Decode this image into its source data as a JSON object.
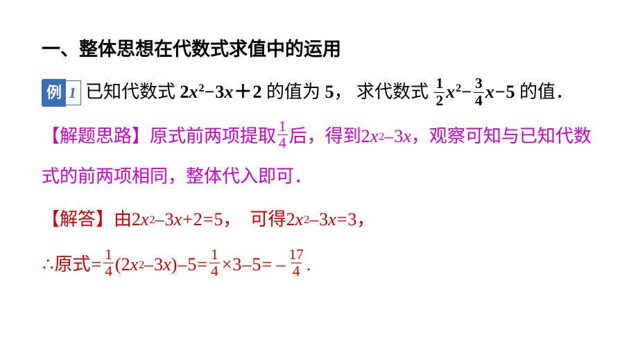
{
  "colors": {
    "black": "#000000",
    "magenta": "#cc00cc",
    "red": "#cc0000",
    "badge_blue": "#3a6fb7",
    "bg": "#ffffff"
  },
  "heading": "一、整体思想在代数式求值中的运用",
  "example_badge": {
    "tag": "例",
    "num": "1"
  },
  "problem": {
    "p1": "已知代数式 ",
    "coef1": "2",
    "var1": "x",
    "exp1": "2",
    "op1": "−",
    "coef2": "3",
    "var2": "x",
    "op2": "＋",
    "c3": "2",
    "p2": " 的值为 ",
    "val5": "5",
    "comma": "，",
    "p3": "求代数式",
    "f1n": "1",
    "f1d": "2",
    "var3": "x",
    "exp2": "2",
    "op3": "−",
    "f2n": "3",
    "f2d": "4",
    "var4": "x",
    "op4": "−",
    "c5": "5",
    "p4": " 的值．"
  },
  "hint": {
    "label": "【解题思路】",
    "h1": "原式前两项提取",
    "fqn": "1",
    "fqd": "4",
    "h2": "后，得到 ",
    "coef1": "2",
    "var1": "x",
    "exp1": "2",
    "op1": " – ",
    "coef2": "3",
    "var2": "x",
    "h3": "，观察可知与已知代数",
    "h4": "式的前两项相同，整体代入即可．"
  },
  "sol": {
    "label": "【解答】",
    "s1": "由 ",
    "a1": "2",
    "v1": "x",
    "e1": "2",
    "op1": " – ",
    "a2": "3",
    "v2": "x",
    "op2": " + ",
    "a3": "2",
    "eq1": " = ",
    "r1": "5",
    "comma1": "，",
    "s2": "可得 ",
    "b1": "2",
    "w1": "x",
    "f1": "2",
    "op3": " – ",
    "b2": "3",
    "w2": "x",
    "eq2": " = ",
    "r2": "3",
    "comma2": "，",
    "there": "∴ ",
    "s3": "原式",
    "eq3": " = ",
    "q1n": "1",
    "q1d": "4",
    "lp": "(",
    "c1": "2",
    "u1": "x",
    "g1": "2",
    "op4": " – ",
    "c2": "3",
    "u2": "x",
    "rp": ")",
    "op5": " – ",
    "c5": "5",
    "eq4": " = ",
    "q2n": "1",
    "q2d": "4",
    "mul": "×",
    "m3": "3",
    "op6": " – ",
    "m5": "5",
    "eq5": " =  – ",
    "ansn": "17",
    "ansd": "4",
    "dot": "."
  }
}
